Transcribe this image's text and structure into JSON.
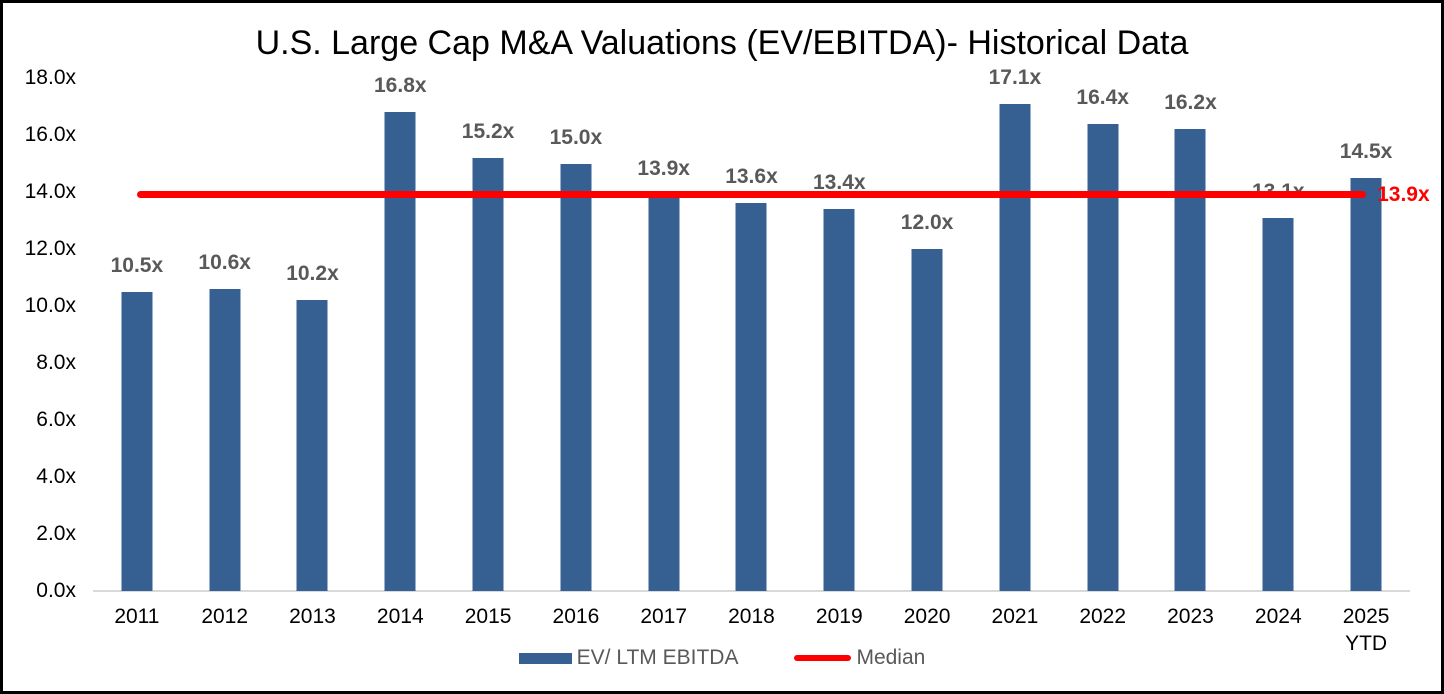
{
  "chart_data": {
    "type": "bar",
    "title": "U.S. Large Cap M&A Valuations (EV/EBITDA)- Historical Data",
    "categories": [
      "2011",
      "2012",
      "2013",
      "2014",
      "2015",
      "2016",
      "2017",
      "2018",
      "2019",
      "2020",
      "2021",
      "2022",
      "2023",
      "2024",
      "2025\nYTD"
    ],
    "series": [
      {
        "name": "EV/ LTM EBITDA",
        "values": [
          10.5,
          10.6,
          10.2,
          16.8,
          15.2,
          15.0,
          13.9,
          13.6,
          13.4,
          12.0,
          17.1,
          16.4,
          16.2,
          13.1,
          14.5
        ],
        "value_labels": [
          "10.5x",
          "10.6x",
          "10.2x",
          "16.8x",
          "15.2x",
          "15.0x",
          "13.9x",
          "13.6x",
          "13.4x",
          "12.0x",
          "17.1x",
          "16.4x",
          "16.2x",
          "13.1x",
          "14.5x"
        ]
      }
    ],
    "median": {
      "name": "Median",
      "value": 13.9,
      "label": "13.9x"
    },
    "xlabel": "",
    "ylabel": "",
    "ylim": [
      0,
      18
    ],
    "ytick_interval": 2,
    "ytick_labels": [
      "0.0x",
      "2.0x",
      "4.0x",
      "6.0x",
      "8.0x",
      "10.0x",
      "12.0x",
      "14.0x",
      "16.0x",
      "18.0x"
    ],
    "grid": false,
    "legend_position": "bottom-center",
    "legend": [
      {
        "label": "EV/ LTM EBITDA",
        "swatch": "bar"
      },
      {
        "label": "Median",
        "swatch": "line"
      }
    ],
    "colors": {
      "bar": "#366092",
      "median_line": "#FF0000",
      "median_label": "#FF0000",
      "value_label": "#595959",
      "legend_text": "#595959",
      "axis_line": "#D9D9D9",
      "tick_label": "#000000",
      "title": "#000000",
      "background": "#FFFFFF",
      "border": "#000000"
    }
  }
}
